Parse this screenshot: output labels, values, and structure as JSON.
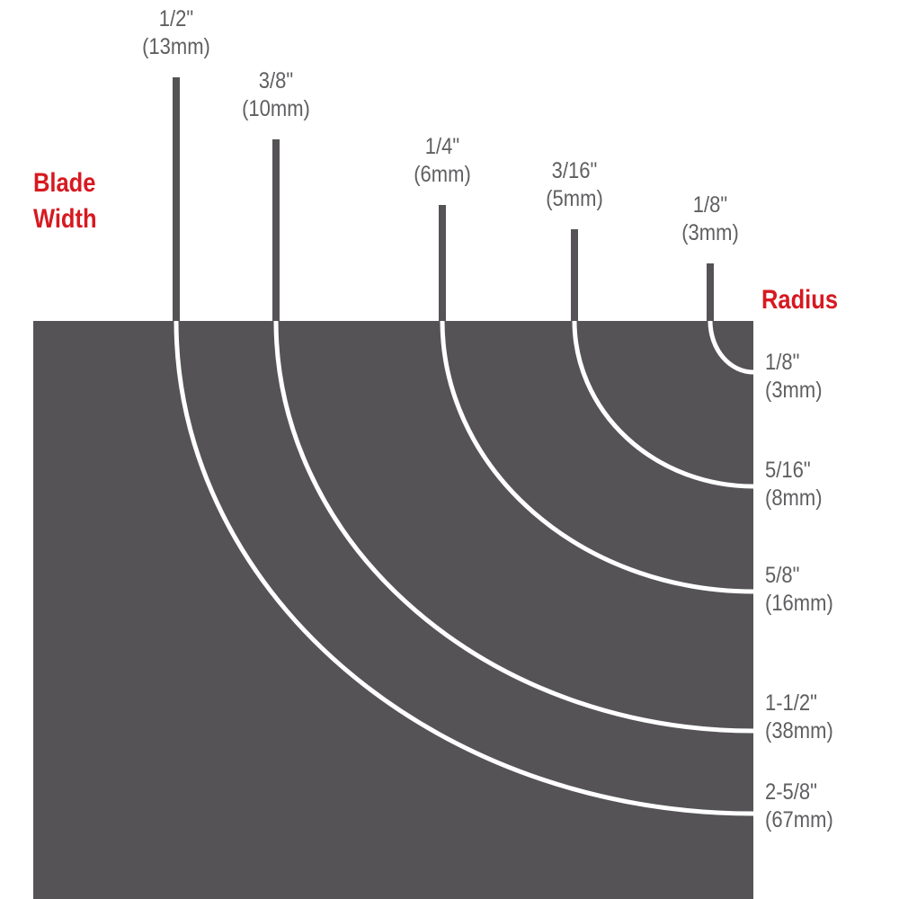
{
  "colors": {
    "block": "#555356",
    "arc": "#ffffff",
    "accent": "#d71920",
    "text": "#5f5f62"
  },
  "blade_width_title": [
    "Blade",
    "Width"
  ],
  "radius_title": "Radius",
  "blades": [
    {
      "inch": "1/2\"",
      "mm": "(13mm)",
      "radius_inch": "2-5/8\"",
      "radius_mm": "(67mm)"
    },
    {
      "inch": "3/8\"",
      "mm": "(10mm)",
      "radius_inch": "1-1/2\"",
      "radius_mm": "(38mm)"
    },
    {
      "inch": "1/4\"",
      "mm": "(6mm)",
      "radius_inch": "5/8\"",
      "radius_mm": "(16mm)"
    },
    {
      "inch": "3/16\"",
      "mm": "(5mm)",
      "radius_inch": "5/16\"",
      "radius_mm": "(8mm)"
    },
    {
      "inch": "1/8\"",
      "mm": "(3mm)",
      "radius_inch": "1/8\"",
      "radius_mm": "(3mm)"
    }
  ]
}
